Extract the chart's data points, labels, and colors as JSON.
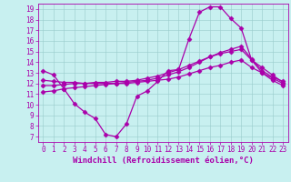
{
  "xlabel": "Windchill (Refroidissement éolien,°C)",
  "bg_color": "#c8f0f0",
  "line_color": "#aa00aa",
  "xlim": [
    -0.5,
    23.5
  ],
  "ylim": [
    6.5,
    19.5
  ],
  "xticks": [
    0,
    1,
    2,
    3,
    4,
    5,
    6,
    7,
    8,
    9,
    10,
    11,
    12,
    13,
    14,
    15,
    16,
    17,
    18,
    19,
    20,
    21,
    22,
    23
  ],
  "yticks": [
    7,
    8,
    9,
    10,
    11,
    12,
    13,
    14,
    15,
    16,
    17,
    18,
    19
  ],
  "curve1_x": [
    0,
    1,
    2,
    3,
    4,
    5,
    6,
    7,
    8,
    9,
    10,
    11,
    12,
    13,
    14,
    15,
    16,
    17,
    18,
    19,
    20,
    21,
    22,
    23
  ],
  "curve1_y": [
    13.2,
    12.8,
    11.5,
    10.1,
    9.3,
    8.7,
    7.2,
    7.0,
    8.2,
    10.8,
    11.3,
    12.2,
    13.2,
    13.3,
    16.2,
    18.7,
    19.2,
    19.2,
    18.1,
    17.2,
    14.2,
    13.0,
    12.5,
    12.0
  ],
  "curve2_x": [
    0,
    1,
    2,
    3,
    4,
    5,
    6,
    7,
    8,
    9,
    10,
    11,
    12,
    13,
    14,
    15,
    16,
    17,
    18,
    19,
    20,
    21,
    22,
    23
  ],
  "curve2_y": [
    12.3,
    12.2,
    12.1,
    12.1,
    12.0,
    12.0,
    12.0,
    12.0,
    12.1,
    12.2,
    12.3,
    12.5,
    12.8,
    13.1,
    13.5,
    14.0,
    14.5,
    14.9,
    15.2,
    15.5,
    14.3,
    13.2,
    12.6,
    12.2
  ],
  "curve3_x": [
    0,
    1,
    2,
    3,
    4,
    5,
    6,
    7,
    8,
    9,
    10,
    11,
    12,
    13,
    14,
    15,
    16,
    17,
    18,
    19,
    20,
    21,
    22,
    23
  ],
  "curve3_y": [
    11.8,
    11.8,
    11.9,
    12.0,
    12.0,
    12.1,
    12.1,
    12.2,
    12.2,
    12.3,
    12.5,
    12.7,
    13.0,
    13.3,
    13.7,
    14.1,
    14.5,
    14.8,
    15.0,
    15.2,
    14.2,
    13.5,
    12.8,
    12.1
  ],
  "curve4_x": [
    0,
    1,
    2,
    3,
    4,
    5,
    6,
    7,
    8,
    9,
    10,
    11,
    12,
    13,
    14,
    15,
    16,
    17,
    18,
    19,
    20,
    21,
    22,
    23
  ],
  "curve4_y": [
    11.2,
    11.3,
    11.5,
    11.6,
    11.7,
    11.8,
    11.9,
    12.0,
    12.0,
    12.1,
    12.2,
    12.3,
    12.4,
    12.6,
    12.9,
    13.2,
    13.5,
    13.7,
    14.0,
    14.2,
    13.5,
    13.0,
    12.3,
    11.8
  ],
  "marker": "D",
  "markersize": 2.5,
  "linewidth": 0.9,
  "tick_fontsize": 5.5,
  "xlabel_fontsize": 6.5,
  "grid_color": "#99cccc",
  "grid_linewidth": 0.4
}
